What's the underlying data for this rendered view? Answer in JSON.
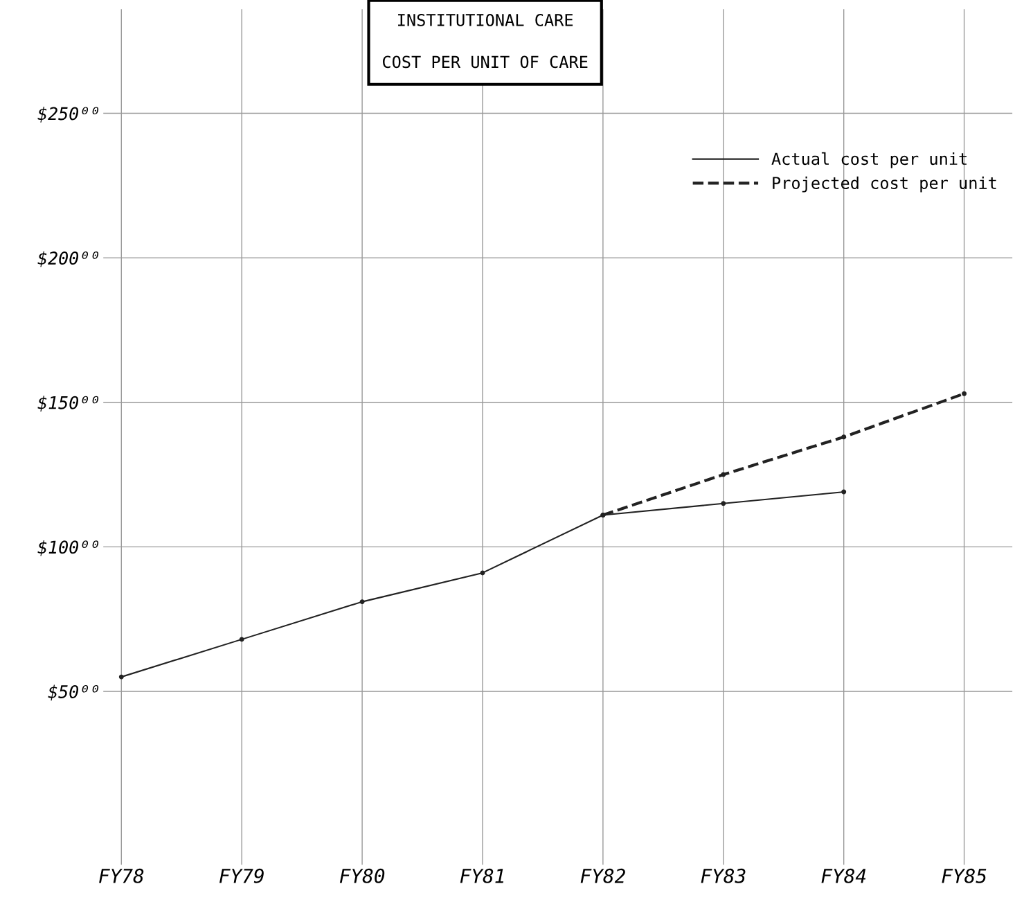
{
  "chart_data": {
    "type": "line",
    "title": "INSTITUTIONAL CARE\n\nCOST PER UNIT OF CARE",
    "categories": [
      "FY78",
      "FY79",
      "FY80",
      "FY81",
      "FY82",
      "FY83",
      "FY84",
      "FY85"
    ],
    "series": [
      {
        "name": "Actual cost per unit",
        "color": "#222222",
        "line_style": "solid",
        "values": [
          55,
          68,
          81,
          91,
          111,
          115,
          119,
          null
        ]
      },
      {
        "name": "Projected cost per unit",
        "color": "#222222",
        "line_style": "dashed",
        "values": [
          null,
          null,
          null,
          null,
          111,
          125,
          138,
          153
        ]
      }
    ],
    "ylim": [
      -10,
      286
    ],
    "yticks": [
      {
        "value": 50,
        "label": "$50⁰⁰"
      },
      {
        "value": 100,
        "label": "$100⁰⁰"
      },
      {
        "value": 150,
        "label": "$150⁰⁰"
      },
      {
        "value": 200,
        "label": "$200⁰⁰"
      },
      {
        "value": 250,
        "label": "$250⁰⁰"
      }
    ],
    "grid": true,
    "legend": "top right",
    "marker": "circle"
  }
}
